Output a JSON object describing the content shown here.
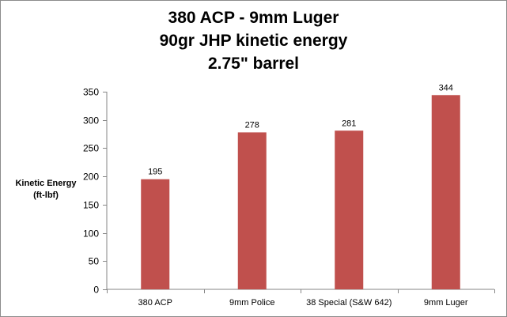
{
  "chart_data": {
    "type": "bar",
    "title_lines": [
      "380 ACP - 9mm Luger",
      "90gr JHP kinetic energy",
      "2.75\" barrel"
    ],
    "ylabel_lines": [
      "Kinetic Energy",
      "(ft-lbf)"
    ],
    "xlabel": "",
    "categories": [
      "380 ACP",
      "9mm Police",
      "38 Special (S&W 642)",
      "9mm Luger"
    ],
    "values": [
      195,
      278,
      281,
      344
    ],
    "data_labels": [
      "195",
      "278",
      "281",
      "344"
    ],
    "ylim": [
      0,
      350
    ],
    "yticks": [
      0,
      50,
      100,
      150,
      200,
      250,
      300,
      350
    ],
    "grid": false,
    "legend": "none",
    "bar_color": "#C0504D",
    "axis_color": "#868686"
  }
}
